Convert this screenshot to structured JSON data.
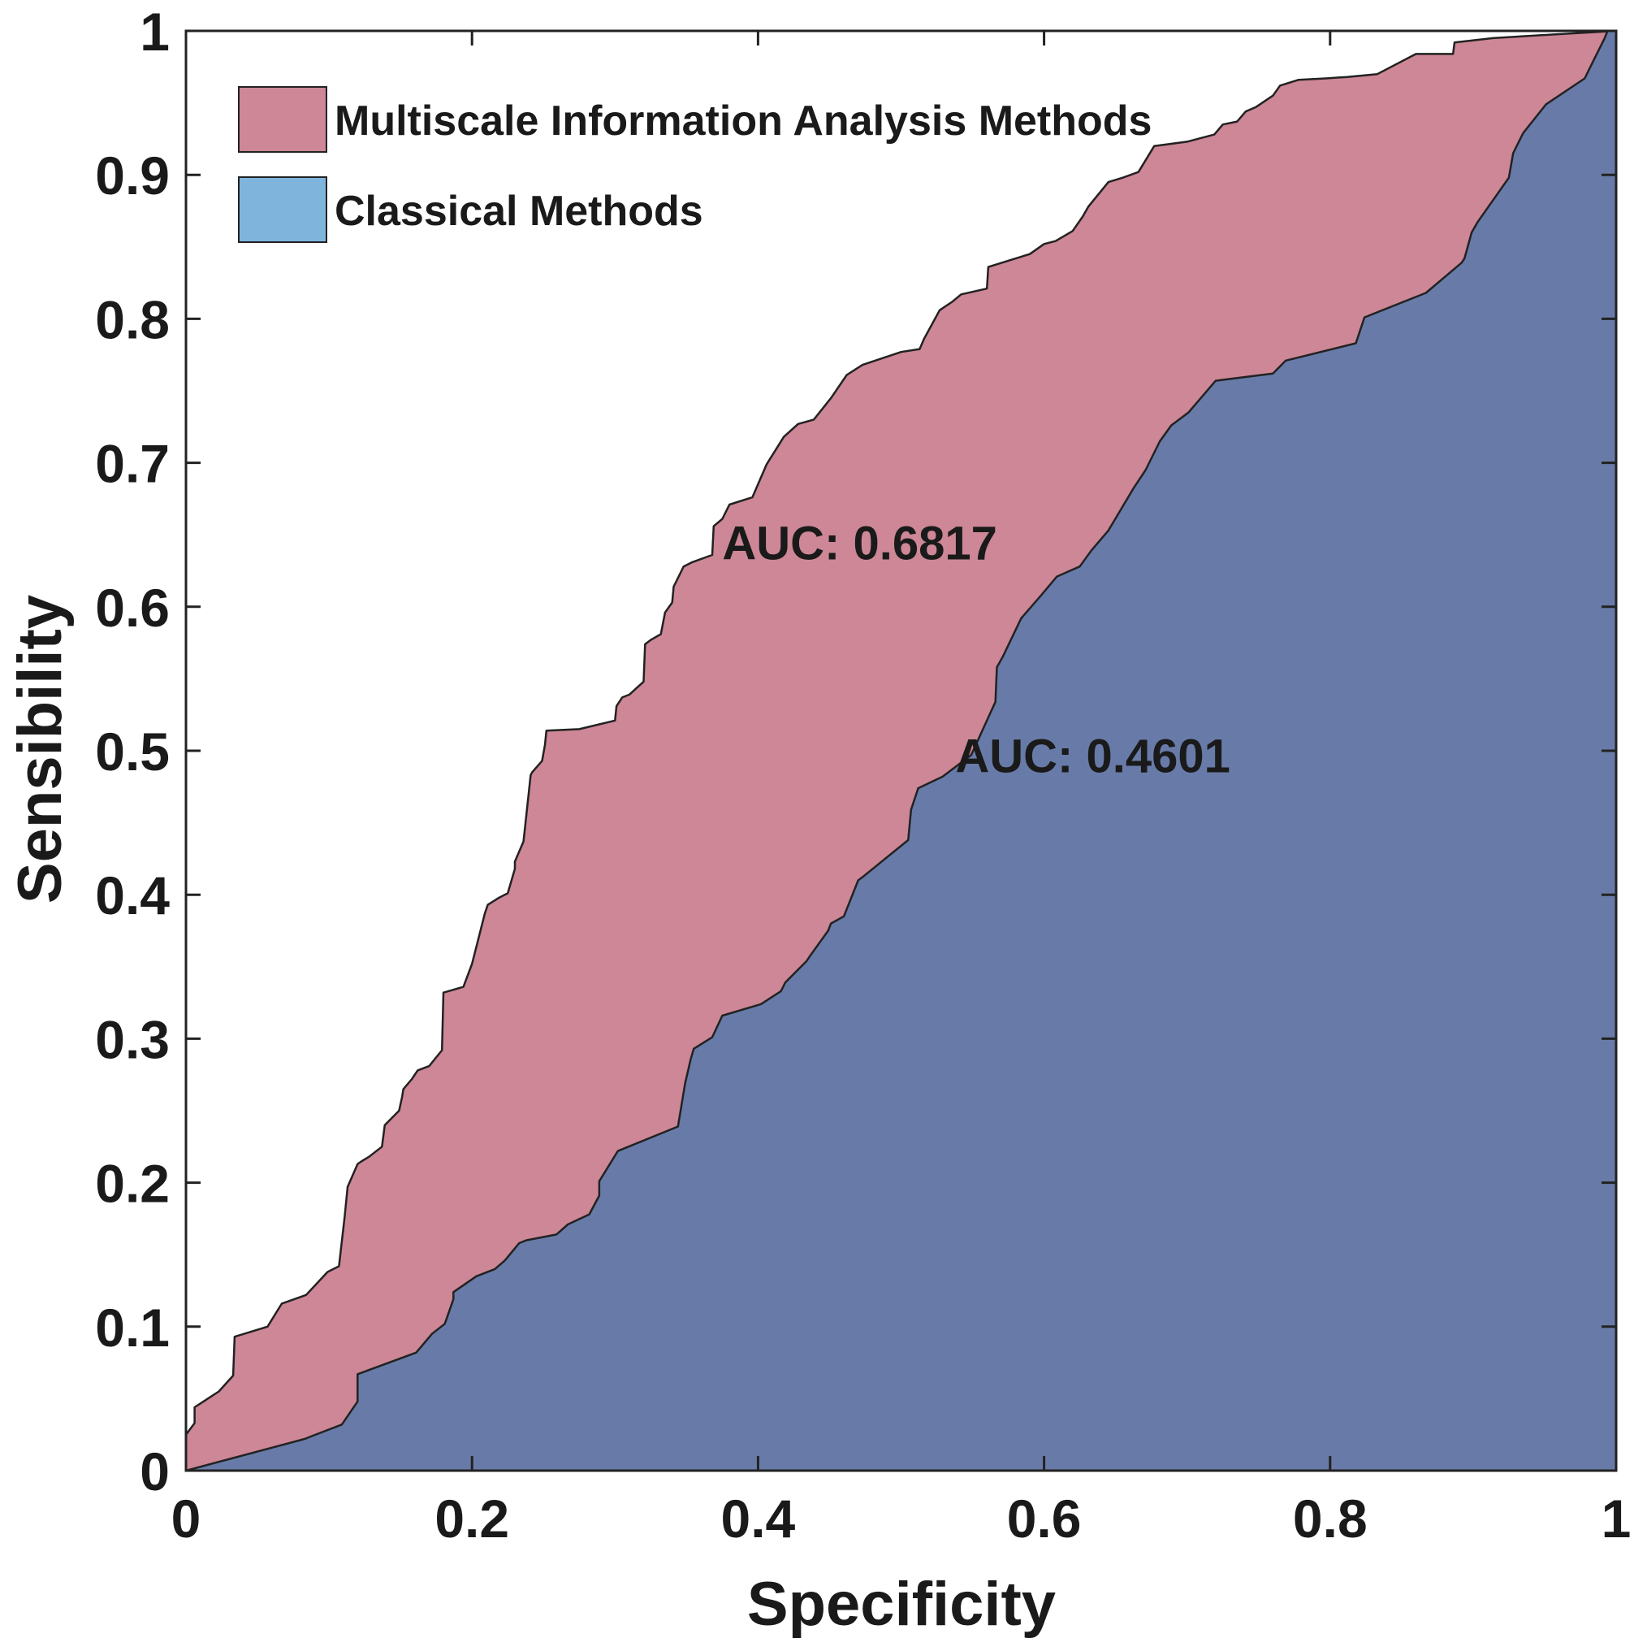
{
  "chart_data": {
    "type": "area",
    "title": "",
    "xlabel": "Specificity",
    "ylabel": "Sensibility",
    "xlim": [
      0,
      1
    ],
    "ylim": [
      0,
      1
    ],
    "x_ticks": [
      0,
      0.2,
      0.4,
      0.6,
      0.8,
      1
    ],
    "x_tick_labels": [
      "0",
      "0.2",
      "0.4",
      "0.6",
      "0.8",
      "1"
    ],
    "y_ticks": [
      0,
      0.1,
      0.2,
      0.3,
      0.4,
      0.5,
      0.6,
      0.7,
      0.8,
      0.9,
      1
    ],
    "y_tick_labels": [
      "0",
      "0.1",
      "0.2",
      "0.3",
      "0.4",
      "0.5",
      "0.6",
      "0.7",
      "0.8",
      "0.9",
      "1"
    ],
    "grid": false,
    "legend_position": "top-left",
    "colors": {
      "multiscale_fill": "#cd8796",
      "classical_fill": "#687ba8",
      "classical_legend_swatch": "#7fb5dd",
      "axis": "#222222",
      "background": "#ffffff"
    },
    "series": [
      {
        "name": "Multiscale Information Analysis Methods",
        "auc": 0.6817,
        "x": [
          0,
          0.006,
          0.006,
          0.023,
          0.033,
          0.034,
          0.057,
          0.067,
          0.084,
          0.099,
          0.107,
          0.111,
          0.113,
          0.12,
          0.123,
          0.128,
          0.137,
          0.139,
          0.149,
          0.151,
          0.152,
          0.158,
          0.162,
          0.17,
          0.179,
          0.18,
          0.194,
          0.2,
          0.209,
          0.211,
          0.219,
          0.225,
          0.23,
          0.23,
          0.236,
          0.241,
          0.242,
          0.249,
          0.251,
          0.252,
          0.275,
          0.3,
          0.301,
          0.305,
          0.31,
          0.32,
          0.321,
          0.325,
          0.332,
          0.335,
          0.34,
          0.341,
          0.348,
          0.354,
          0.368,
          0.369,
          0.375,
          0.38,
          0.396,
          0.406,
          0.418,
          0.428,
          0.439,
          0.451,
          0.462,
          0.473,
          0.5,
          0.513,
          0.516,
          0.527,
          0.536,
          0.542,
          0.56,
          0.561,
          0.59,
          0.6,
          0.608,
          0.62,
          0.627,
          0.631,
          0.645,
          0.655,
          0.666,
          0.677,
          0.7,
          0.719,
          0.725,
          0.735,
          0.741,
          0.748,
          0.76,
          0.765,
          0.778,
          0.797,
          0.812,
          0.833,
          0.86,
          0.886,
          0.887,
          0.914,
          0.948,
          1
        ],
        "y": [
          0.025,
          0.033,
          0.044,
          0.055,
          0.066,
          0.093,
          0.1,
          0.116,
          0.122,
          0.138,
          0.142,
          0.177,
          0.197,
          0.213,
          0.215,
          0.218,
          0.225,
          0.24,
          0.25,
          0.259,
          0.265,
          0.272,
          0.278,
          0.281,
          0.292,
          0.332,
          0.336,
          0.352,
          0.387,
          0.393,
          0.398,
          0.401,
          0.418,
          0.423,
          0.437,
          0.483,
          0.485,
          0.493,
          0.504,
          0.514,
          0.515,
          0.521,
          0.531,
          0.537,
          0.539,
          0.548,
          0.574,
          0.577,
          0.581,
          0.596,
          0.603,
          0.614,
          0.628,
          0.631,
          0.636,
          0.656,
          0.661,
          0.671,
          0.676,
          0.699,
          0.718,
          0.727,
          0.73,
          0.745,
          0.761,
          0.768,
          0.777,
          0.779,
          0.786,
          0.806,
          0.812,
          0.817,
          0.821,
          0.836,
          0.845,
          0.852,
          0.854,
          0.861,
          0.871,
          0.878,
          0.895,
          0.898,
          0.902,
          0.92,
          0.923,
          0.928,
          0.935,
          0.937,
          0.944,
          0.947,
          0.955,
          0.962,
          0.966,
          0.967,
          0.968,
          0.97,
          0.984,
          0.984,
          0.992,
          0.995,
          0.997,
          1
        ]
      },
      {
        "name": "Classical Methods",
        "auc": 0.4601,
        "x": [
          0,
          0.083,
          0.088,
          0.109,
          0.12,
          0.12,
          0.161,
          0.172,
          0.181,
          0.187,
          0.187,
          0.203,
          0.216,
          0.223,
          0.233,
          0.238,
          0.259,
          0.267,
          0.282,
          0.289,
          0.289,
          0.302,
          0.344,
          0.349,
          0.353,
          0.355,
          0.368,
          0.375,
          0.402,
          0.416,
          0.419,
          0.434,
          0.436,
          0.449,
          0.451,
          0.46,
          0.47,
          0.474,
          0.505,
          0.507,
          0.512,
          0.529,
          0.549,
          0.566,
          0.567,
          0.571,
          0.584,
          0.598,
          0.609,
          0.625,
          0.633,
          0.645,
          0.663,
          0.671,
          0.681,
          0.689,
          0.701,
          0.72,
          0.76,
          0.769,
          0.818,
          0.824,
          0.867,
          0.892,
          0.894,
          0.899,
          0.903,
          0.925,
          0.928,
          0.935,
          0.951,
          0.978,
          0.984,
          0.992,
          0.994,
          0.998,
          1
        ],
        "y": [
          0,
          0.022,
          0.024,
          0.032,
          0.048,
          0.067,
          0.082,
          0.095,
          0.102,
          0.119,
          0.124,
          0.135,
          0.14,
          0.146,
          0.158,
          0.16,
          0.164,
          0.171,
          0.178,
          0.191,
          0.201,
          0.222,
          0.239,
          0.269,
          0.286,
          0.293,
          0.301,
          0.316,
          0.324,
          0.333,
          0.339,
          0.354,
          0.357,
          0.375,
          0.38,
          0.385,
          0.41,
          0.413,
          0.438,
          0.459,
          0.474,
          0.482,
          0.497,
          0.534,
          0.558,
          0.565,
          0.592,
          0.608,
          0.621,
          0.628,
          0.639,
          0.653,
          0.683,
          0.695,
          0.715,
          0.726,
          0.735,
          0.757,
          0.762,
          0.771,
          0.783,
          0.801,
          0.818,
          0.839,
          0.842,
          0.86,
          0.867,
          0.898,
          0.915,
          0.929,
          0.949,
          0.967,
          0.979,
          0.995,
          1,
          1,
          1
        ]
      }
    ],
    "annotations": [
      {
        "text": "AUC: 0.6817",
        "x": 0.375,
        "y": 0.633
      },
      {
        "text": "AUC: 0.4601",
        "x": 0.538,
        "y": 0.485
      }
    ]
  }
}
